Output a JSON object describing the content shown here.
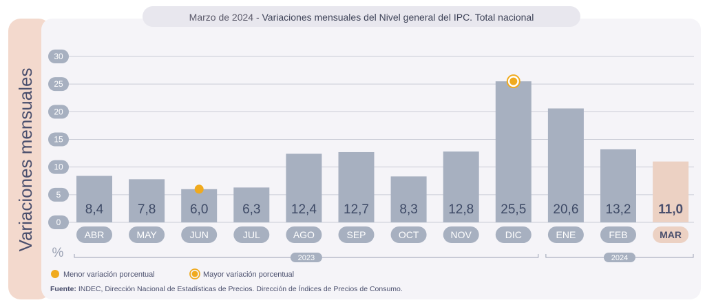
{
  "header": {
    "title_prefix": "Marzo de 2024 - ",
    "title_main": "Variaciones mensuales del Nivel general del IPC. Total nacional"
  },
  "legend": {
    "min_label": "Menor variación porcentual",
    "max_label": "Mayor variación porcentual"
  },
  "source": {
    "label": "Fuente:",
    "text": " INDEC, Dirección Nacional de Estadísticas de Precios. Dirección de Índices de Precios de Consumo."
  },
  "colors": {
    "bar": "#a7b0c0",
    "bar_highlight": "#ecd1c3",
    "marker": "#f0aa1e",
    "axis_pill": "#a7b0c0",
    "panel": "#f5f4f8",
    "ylabel_panel": "#f3d9cd"
  },
  "chart_data": {
    "type": "bar",
    "ylabel": "Variaciones mensuales",
    "unit": "%",
    "ylim": [
      0,
      30
    ],
    "yticks": [
      0,
      5,
      10,
      15,
      20,
      25,
      30
    ],
    "grid": true,
    "categories": [
      "ABR",
      "MAY",
      "JUN",
      "JUL",
      "AGO",
      "SEP",
      "OCT",
      "NOV",
      "DIC",
      "ENE",
      "FEB",
      "MAR"
    ],
    "values": [
      8.4,
      7.8,
      6.0,
      6.3,
      12.4,
      12.7,
      8.3,
      12.8,
      25.5,
      20.6,
      13.2,
      11.0
    ],
    "value_labels": [
      "8,4",
      "7,8",
      "6,0",
      "6,3",
      "12,4",
      "12,7",
      "8,3",
      "12,8",
      "25,5",
      "20,6",
      "13,2",
      "11,0"
    ],
    "highlight_category": "MAR",
    "min_marker_category": "JUN",
    "max_marker_category": "DIC",
    "year_groups": [
      {
        "label": "2023",
        "from": "ABR",
        "to": "DIC"
      },
      {
        "label": "2024",
        "from": "ENE",
        "to": "MAR"
      }
    ]
  }
}
